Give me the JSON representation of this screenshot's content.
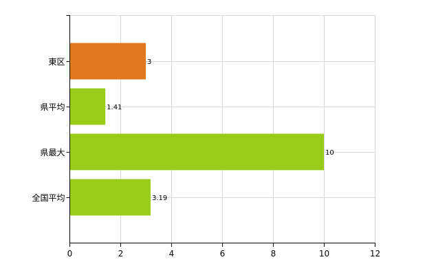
{
  "chart_data": {
    "type": "bar",
    "orientation": "horizontal",
    "title": "",
    "xlabel": "",
    "ylabel": "",
    "categories": [
      "東区",
      "県平均",
      "県最大",
      "全国平均"
    ],
    "values": [
      3,
      1.41,
      10,
      3.19
    ],
    "value_labels": [
      "3",
      "1.41",
      "10",
      "3.19"
    ],
    "bar_colors": [
      "#E07820",
      "#99CC1A",
      "#99CC1A",
      "#99CC1A"
    ],
    "xlim": [
      0,
      12
    ],
    "x_ticks": [
      0,
      2,
      4,
      6,
      8,
      10,
      12
    ],
    "x_tick_labels": [
      "0",
      "2",
      "4",
      "6",
      "8",
      "10",
      "12"
    ],
    "grid": true,
    "legend": "none"
  }
}
